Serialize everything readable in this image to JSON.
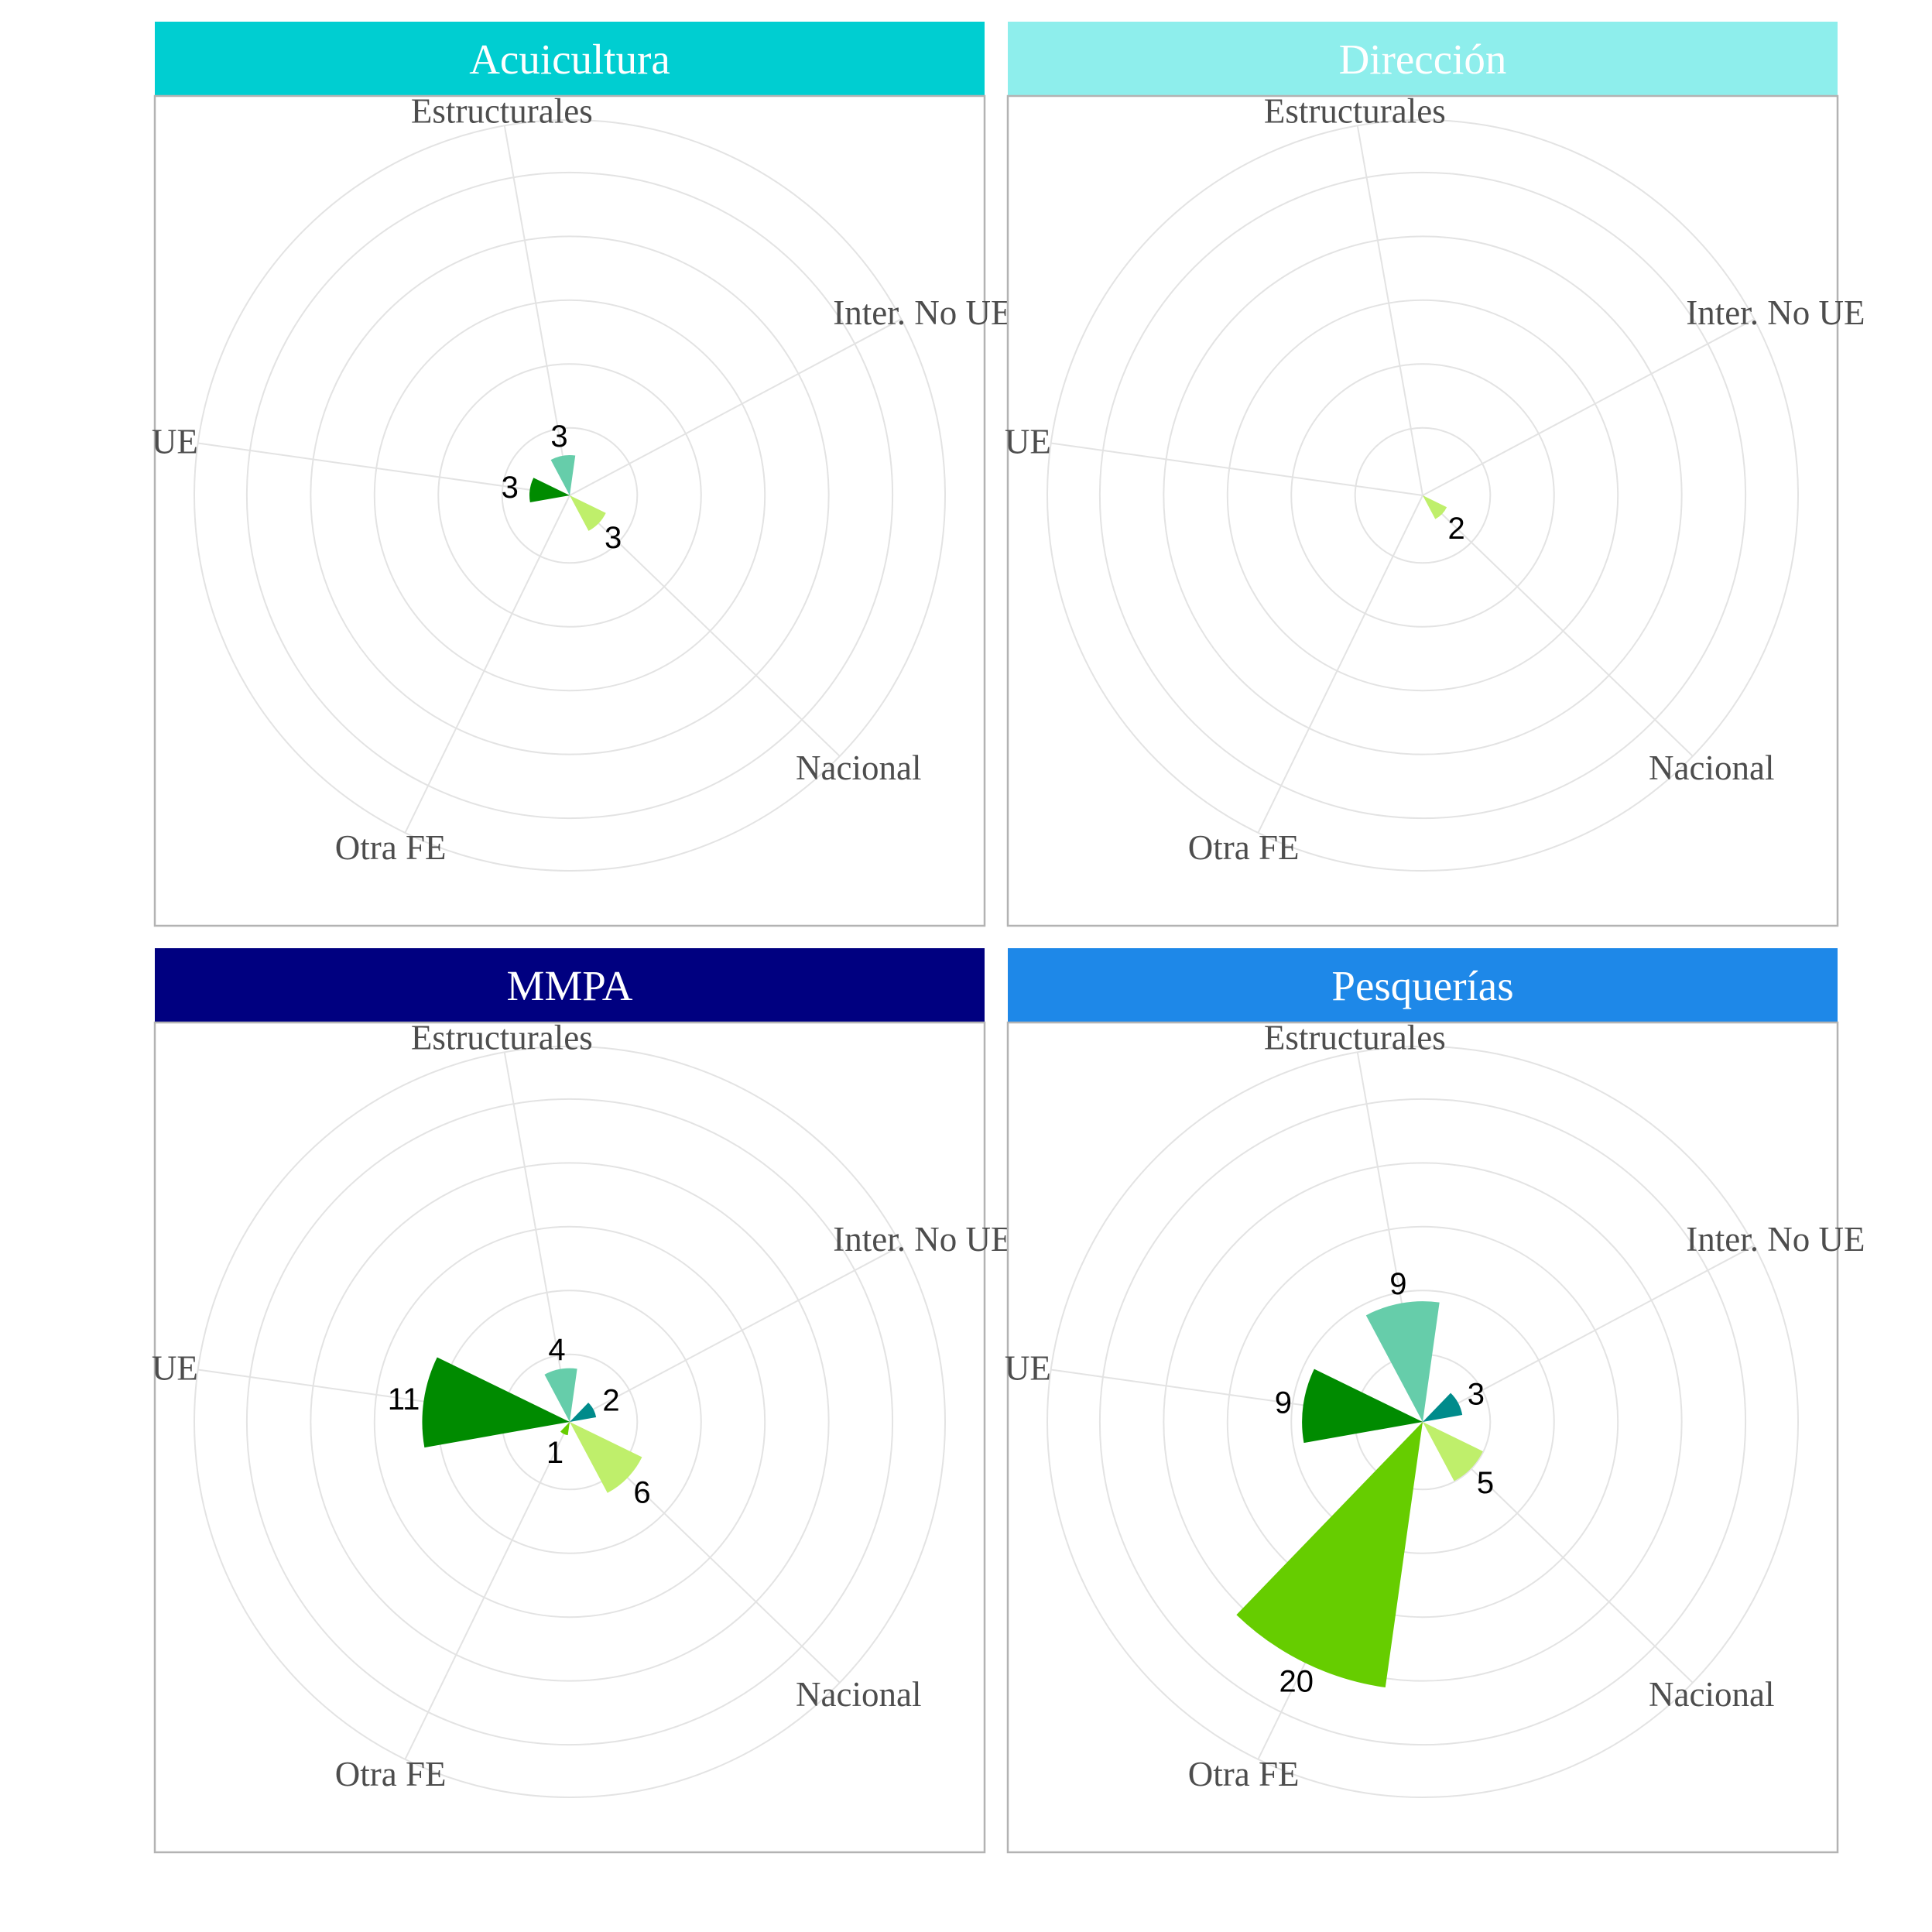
{
  "chart_data": {
    "type": "polar-bar",
    "categories": [
      "Estructurales",
      "Inter. No UE",
      "Nacional",
      "Otra FE",
      "UE"
    ],
    "category_colors": [
      "#66cdaa",
      "#008b8b",
      "#bfef6b",
      "#66cd00",
      "#008b00"
    ],
    "radial_max": 28,
    "grid": true,
    "panels": [
      {
        "title": "Acuicultura",
        "strip_color": "#00ced1",
        "values": [
          3,
          0,
          3,
          0,
          3
        ]
      },
      {
        "title": "Dirección",
        "strip_color": "#8eeeec",
        "values": [
          0,
          0,
          2,
          0,
          0
        ]
      },
      {
        "title": "MMPA",
        "strip_color": "#000080",
        "values": [
          4,
          2,
          6,
          1,
          11
        ]
      },
      {
        "title": "Pesquerías",
        "strip_color": "#1e88e8",
        "values": [
          9,
          3,
          5,
          20,
          9
        ]
      }
    ]
  }
}
